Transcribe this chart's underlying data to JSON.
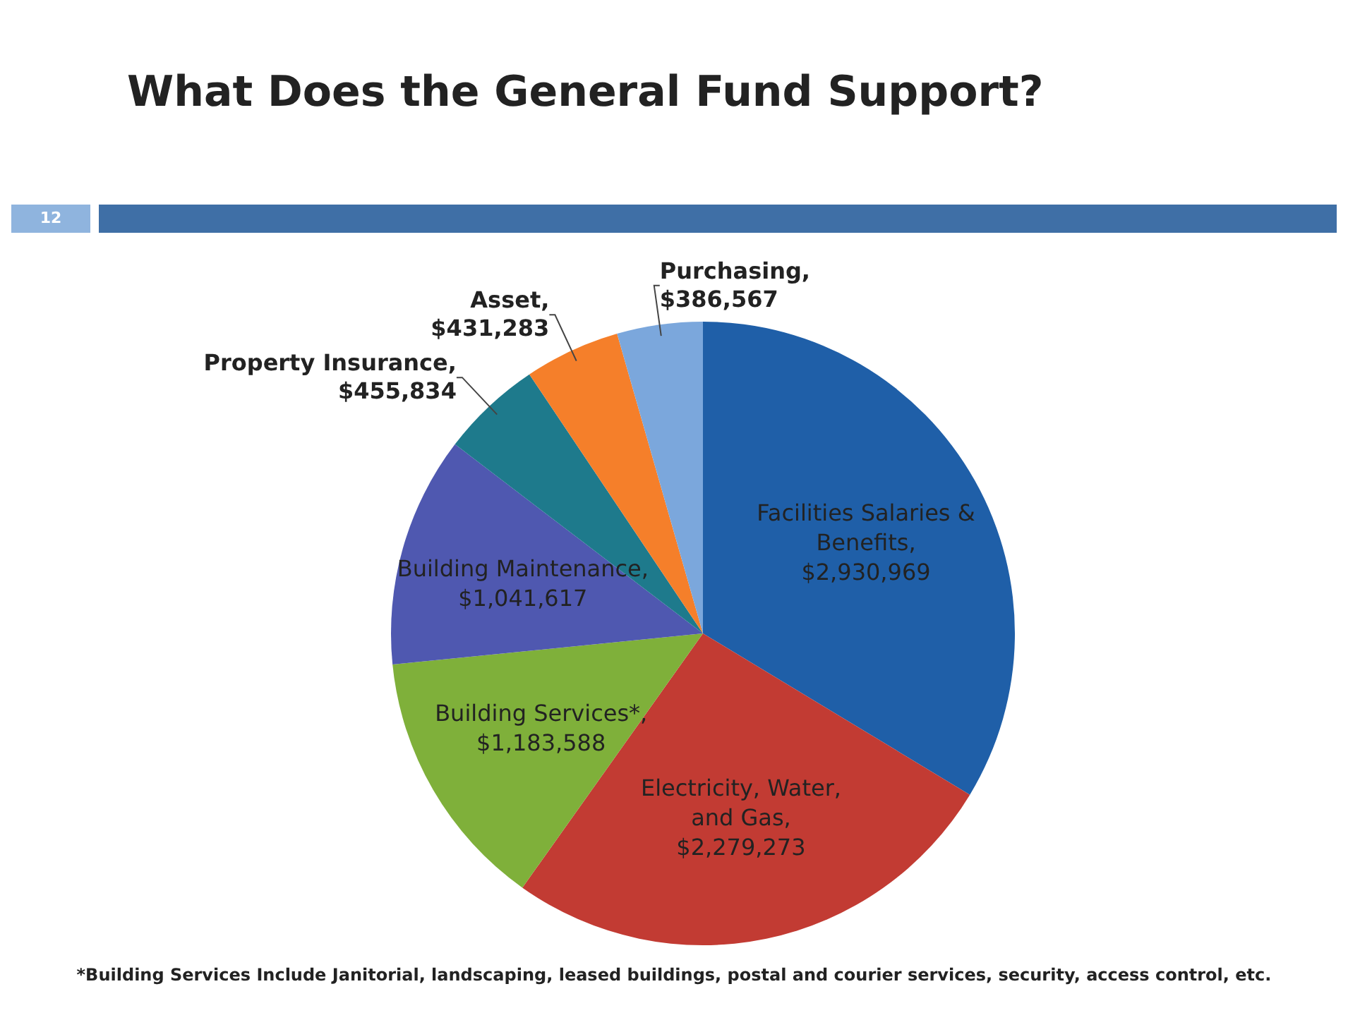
{
  "chart_data": {
    "type": "pie",
    "title": "What Does the General Fund Support?",
    "categories": [
      "Facilities Salaries & Benefits",
      "Electricity, Water, and Gas",
      "Building Services*",
      "Building Maintenance",
      "Property Insurance",
      "Asset",
      "Purchasing"
    ],
    "values": [
      2930969,
      2279273,
      1183588,
      1041617,
      455834,
      431283,
      386567
    ],
    "value_labels": [
      ", $2,930,969",
      ", $2,279,273",
      ", $1,183,588",
      ", $1,041,617",
      ", $455,834",
      ", $431,283",
      ", $386,567"
    ],
    "colors": [
      "#1f5fa8",
      "#c23b33",
      "#7fb03a",
      "#4f58b0",
      "#1e7a8c",
      "#f57f2a",
      "#7ba7dc"
    ],
    "legend": false,
    "annotations": [
      "12",
      "*Building Services Include Janitorial, landscaping, leased buildings, postal and courier services, security, access control, etc."
    ]
  }
}
